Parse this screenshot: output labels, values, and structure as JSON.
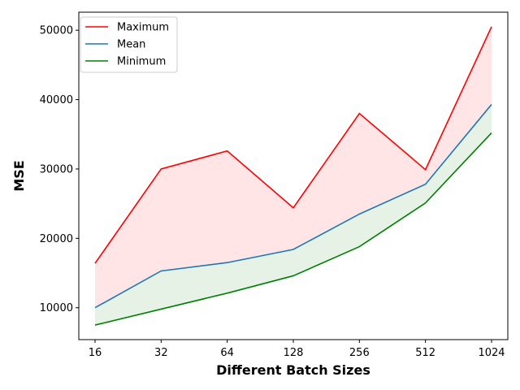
{
  "chart_data": {
    "type": "line",
    "categories": [
      "16",
      "32",
      "64",
      "128",
      "256",
      "512",
      "1024"
    ],
    "series": [
      {
        "name": "Maximum",
        "color": "#ff0000",
        "values": [
          16400,
          30000,
          32600,
          24400,
          38000,
          29900,
          50500
        ]
      },
      {
        "name": "Mean",
        "color": "#1f77b4",
        "values": [
          10000,
          15300,
          16500,
          18400,
          23500,
          27800,
          39300
        ]
      },
      {
        "name": "Minimum",
        "color": "#008000",
        "values": [
          7500,
          9800,
          12100,
          14600,
          18800,
          25100,
          35200
        ]
      }
    ],
    "fills": [
      {
        "between": [
          "Mean",
          "Maximum"
        ],
        "color": "#ff0000",
        "opacity": 0.1
      },
      {
        "between": [
          "Minimum",
          "Mean"
        ],
        "color": "#008000",
        "opacity": 0.1
      }
    ],
    "xlabel": "Different Batch Sizes",
    "ylabel": "MSE",
    "ylim": [
      5400,
      52600
    ],
    "yticks": [
      10000,
      20000,
      30000,
      40000,
      50000
    ],
    "ytick_labels": [
      "10000",
      "20000",
      "30000",
      "40000",
      "50000"
    ],
    "grid": false,
    "legend": "top-left"
  }
}
